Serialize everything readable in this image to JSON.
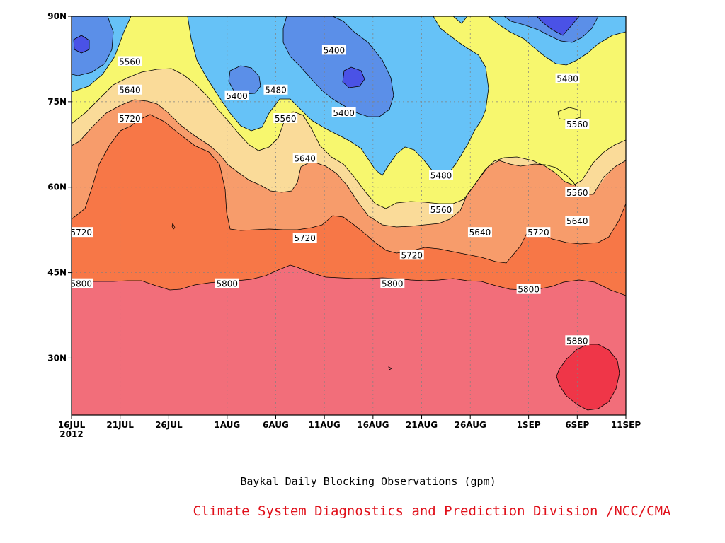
{
  "chart_data": {
    "type": "contour",
    "title": "",
    "caption": "Baykal Daily Blocking Observations (gpm)",
    "credit": "Climate System Diagnostics and Prediction Division /NCC/CMA",
    "x_ticks": [
      "16JUL",
      "21JUL",
      "26JUL",
      "1AUG",
      "6AUG",
      "11AUG",
      "16AUG",
      "21AUG",
      "26AUG",
      "1SEP",
      "6SEP",
      "11SEP"
    ],
    "x_year_label": "2012",
    "y_ticks": [
      "90N",
      "75N",
      "60N",
      "45N",
      "30N"
    ],
    "y_values": [
      90,
      75,
      60,
      45,
      30
    ],
    "ylim": [
      20,
      90
    ],
    "grid": true,
    "levels": [
      5400,
      5480,
      5560,
      5640,
      5720,
      5800,
      5880
    ],
    "fill_colors": {
      "below_5400": "#4a52e6",
      "5400_5480": "#5b8fe8",
      "5480_5560": "#66c2f7",
      "5560_5640": "#f7f76e",
      "5640_5720": "#fadb99",
      "5720_5800": "#f79c6b",
      "5800_5880_upper": "#f77747",
      "5800_5880": "#f26e7a",
      "above_5880": "#ef3648"
    },
    "contour_labels": [
      {
        "text": "5400",
        "lon_date": "12AUG",
        "lat": 84
      },
      {
        "text": "5400",
        "lon_date": "2AUG",
        "lat": 76
      },
      {
        "text": "5400",
        "lon_date": "13AUG",
        "lat": 73
      },
      {
        "text": "5480",
        "lon_date": "5SEP",
        "lat": 79
      },
      {
        "text": "5480",
        "lon_date": "6AUG",
        "lat": 77
      },
      {
        "text": "5480",
        "lon_date": "23AUG",
        "lat": 62
      },
      {
        "text": "5560",
        "lon_date": "22JUL",
        "lat": 82
      },
      {
        "text": "5560",
        "lon_date": "7AUG",
        "lat": 72
      },
      {
        "text": "5560",
        "lon_date": "6SEP",
        "lat": 71
      },
      {
        "text": "5560",
        "lon_date": "6SEP",
        "lat": 59
      },
      {
        "text": "5560",
        "lon_date": "23AUG",
        "lat": 56
      },
      {
        "text": "5640",
        "lon_date": "22JUL",
        "lat": 77
      },
      {
        "text": "5640",
        "lon_date": "9AUG",
        "lat": 65
      },
      {
        "text": "5640",
        "lon_date": "27AUG",
        "lat": 52
      },
      {
        "text": "5640",
        "lon_date": "6SEP",
        "lat": 54
      },
      {
        "text": "5720",
        "lon_date": "22JUL",
        "lat": 72
      },
      {
        "text": "5720",
        "lon_date": "17JUL",
        "lat": 52
      },
      {
        "text": "5720",
        "lon_date": "9AUG",
        "lat": 51
      },
      {
        "text": "5720",
        "lon_date": "20AUG",
        "lat": 48
      },
      {
        "text": "5720",
        "lon_date": "2SEP",
        "lat": 52
      },
      {
        "text": "5800",
        "lon_date": "17JUL",
        "lat": 43
      },
      {
        "text": "5800",
        "lon_date": "1AUG",
        "lat": 43
      },
      {
        "text": "5800",
        "lon_date": "18AUG",
        "lat": 43
      },
      {
        "text": "5800",
        "lon_date": "1SEP",
        "lat": 42
      },
      {
        "text": "5880",
        "lon_date": "6SEP",
        "lat": 33
      }
    ]
  }
}
